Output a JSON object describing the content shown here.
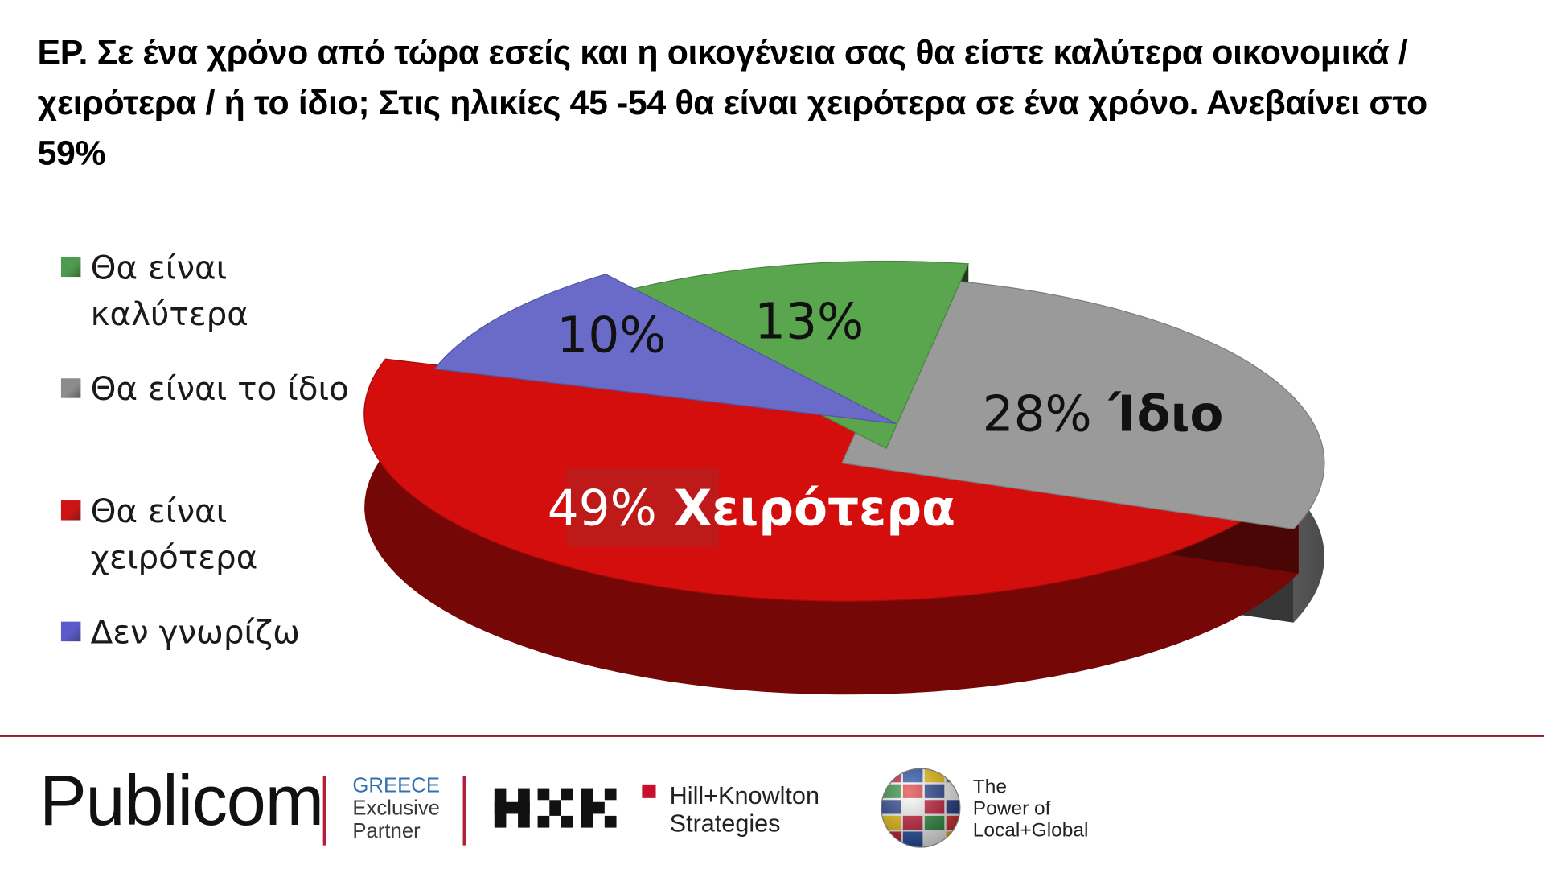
{
  "title": "ΕΡ. Σε ένα χρόνο από τώρα εσείς και η οικογένεια σας θα είστε καλύτερα οικονομικά / χειρότερα / ή το ίδιο; Στις ηλικίες 45 -54 θα είναι χειρότερα σε ένα χρόνο. Ανεβαίνει στο 59%",
  "legend": [
    {
      "line1": "Θα είναι",
      "line2": "καλύτερα",
      "color": "#4e9a4e"
    },
    {
      "line1": "Θα είναι το ίδιο",
      "line2": "",
      "color": "#8c8c8c"
    },
    {
      "line1": "Θα είναι",
      "line2": "χειρότερα",
      "color": "#cc1414"
    },
    {
      "line1": "Δεν γνωρίζω",
      "line2": "",
      "color": "#5a5ac8"
    }
  ],
  "chart_data": {
    "type": "pie",
    "title": "",
    "slices": [
      {
        "name": "Θα είναι χειρότερα",
        "value": 49,
        "label_pct": "49%",
        "label_word": "Χειρότερα",
        "color": "#d40d0d"
      },
      {
        "name": "Θα είναι το ίδιο",
        "value": 28,
        "label_pct": "28%",
        "label_word": "Ίδιο",
        "color": "#9a9a9a"
      },
      {
        "name": "Θα είναι καλύτερα",
        "value": 13,
        "label_pct": "13%",
        "label_word": "",
        "color": "#5aa64e"
      },
      {
        "name": "Δεν γνωρίζω",
        "value": 10,
        "label_pct": "10%",
        "label_word": "",
        "color": "#6a6ac8"
      }
    ],
    "style": "3d-exploded"
  },
  "footer": {
    "brand": "Publicom",
    "partner_country": "GREECE",
    "partner_line1": "Exclusive",
    "partner_line2": "Partner",
    "hk_line1": "Hill+Knowlton",
    "hk_line2": "Strategies",
    "power_line1": "The",
    "power_line2": "Power of",
    "power_line3": "Local+Global",
    "accent_color": "#b3203a",
    "globe_icon": "globe-flags-icon"
  }
}
